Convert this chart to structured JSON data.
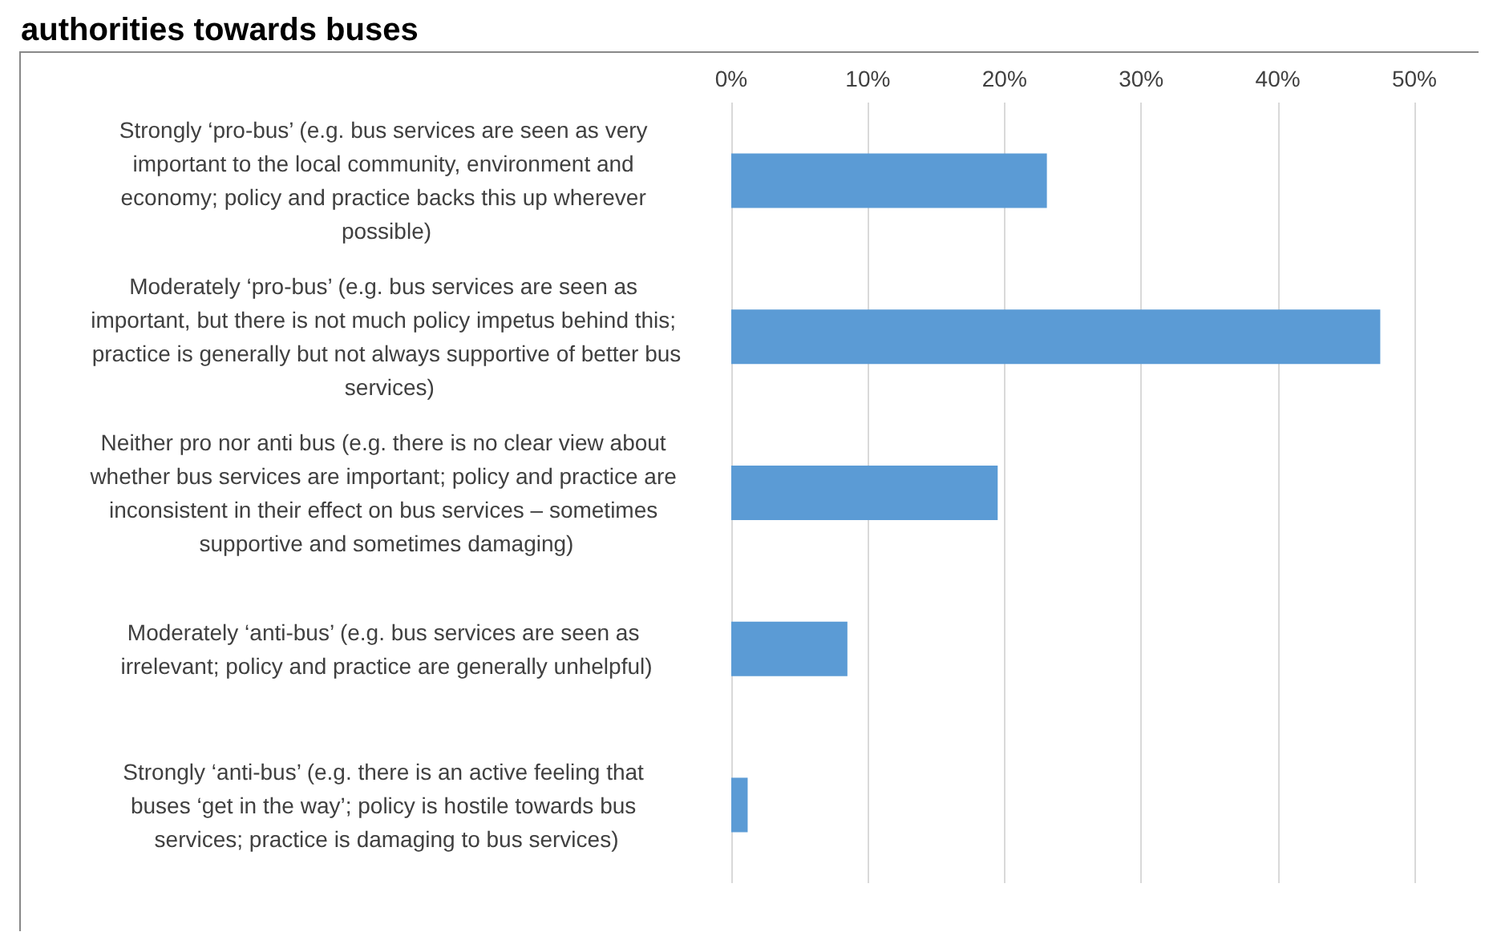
{
  "chart_data": {
    "type": "bar",
    "orientation": "horizontal",
    "title": "authorities towards buses",
    "categories": [
      "Strongly ‘pro-bus’ (e.g. bus services are seen as very important to the local community, environment and economy; policy and practice backs this up wherever possible)",
      "Moderately ‘pro-bus’ (e.g. bus services are seen as important, but there is not much policy impetus behind this; practice is generally but not always supportive of better bus services)",
      "Neither pro nor anti bus (e.g. there is no clear view about whether bus services are important; policy and practice are inconsistent in their effect on bus services – sometimes supportive and sometimes damaging)",
      "Moderately ‘anti-bus’ (e.g. bus services are seen as irrelevant; policy and practice are generally unhelpful)",
      "Strongly ‘anti-bus’ (e.g. there is an active feeling that buses ‘get in the way’; policy is hostile towards bus services; practice is damaging to bus services)"
    ],
    "values": [
      23.1,
      47.5,
      19.5,
      8.5,
      1.2
    ],
    "color": "#5b9bd5",
    "xlim": [
      0,
      50
    ],
    "xticks": [
      {
        "value": 0,
        "label": "0%"
      },
      {
        "value": 10,
        "label": "10%"
      },
      {
        "value": 20,
        "label": "20%"
      },
      {
        "value": 30,
        "label": "30%"
      },
      {
        "value": 40,
        "label": "40%"
      },
      {
        "value": 50,
        "label": "50%"
      }
    ],
    "grid": "x"
  }
}
